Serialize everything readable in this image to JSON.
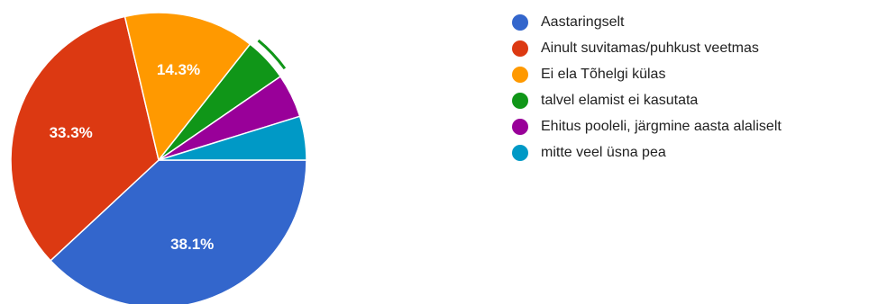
{
  "chart_data": {
    "type": "pie",
    "start_angle_deg": 0,
    "direction": "clockwise",
    "legend_position": "right",
    "slices": [
      {
        "label": "Aastaringselt",
        "value": 38.1,
        "color": "#3366cc",
        "data_label": "38.1%"
      },
      {
        "label": "Ainult suvitamas/puhkust veetmas",
        "value": 33.3,
        "color": "#dc3912",
        "data_label": "33.3%"
      },
      {
        "label": "Ei ela Tõhelgi külas",
        "value": 14.3,
        "color": "#ff9900",
        "data_label": "14.3%"
      },
      {
        "label": "talvel elamist ei kasutata",
        "value": 4.8,
        "color": "#109618",
        "data_label": "",
        "highlighted": true
      },
      {
        "label": "Ehitus pooleli, järgmine aasta alaliselt",
        "value": 4.8,
        "color": "#990099",
        "data_label": ""
      },
      {
        "label": "mitte veel üsna pea",
        "value": 4.8,
        "color": "#0099c6",
        "data_label": ""
      }
    ]
  }
}
